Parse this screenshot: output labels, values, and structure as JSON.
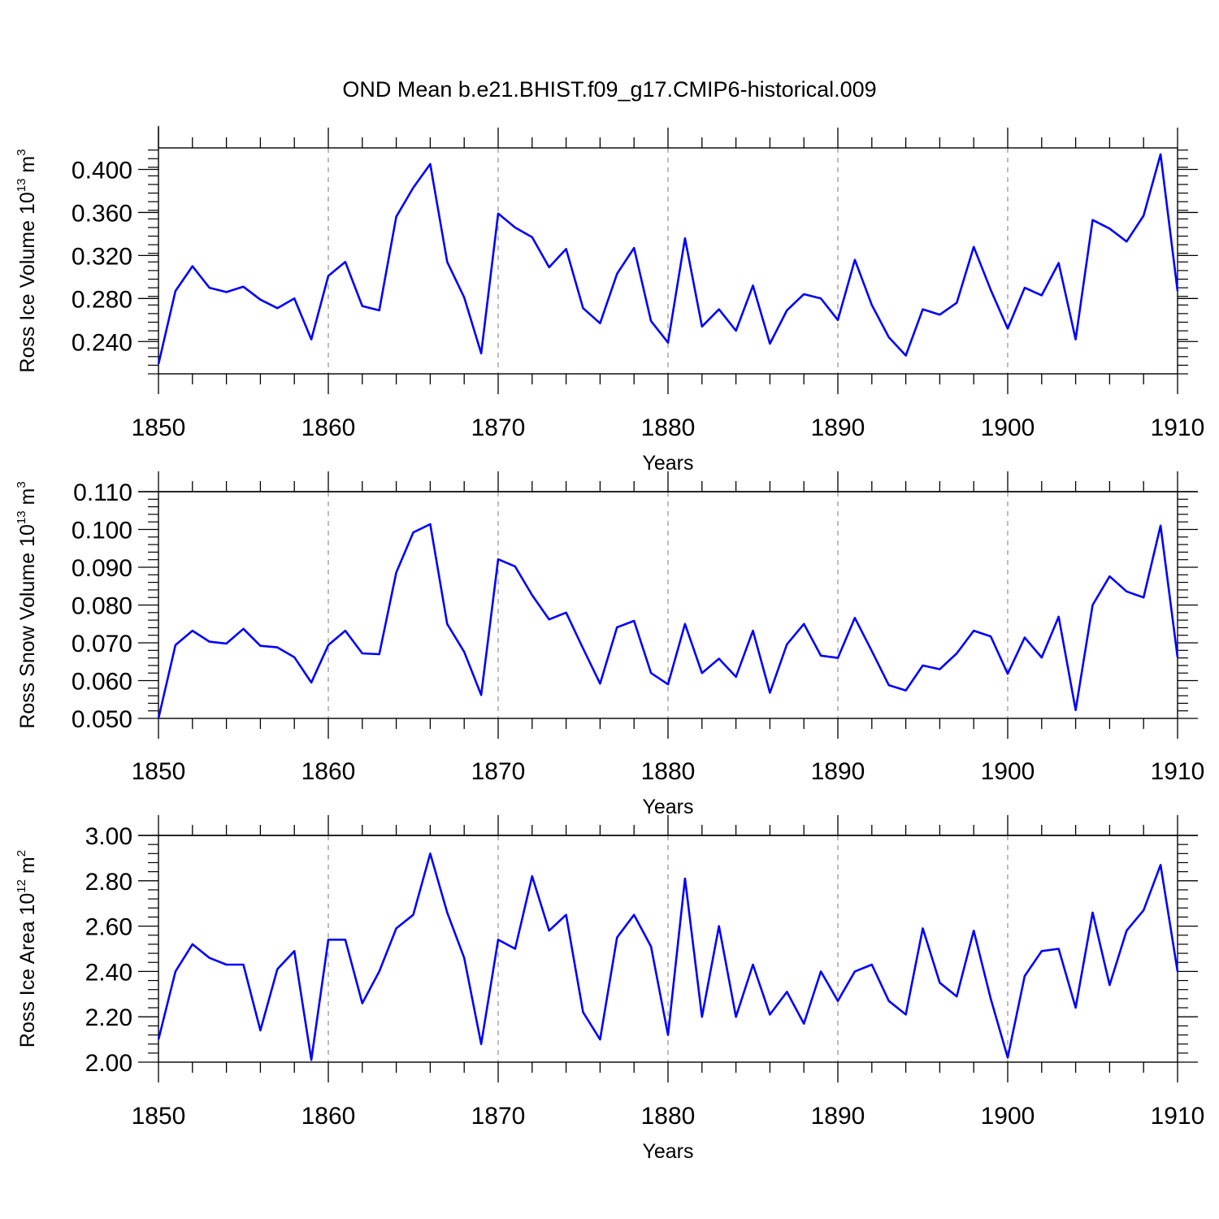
{
  "chart_data": {
    "type": "line",
    "title": "OND Mean b.e21.BHIST.f09_g17.CMIP6-historical.009",
    "color": "#0000ff",
    "x": [
      1850,
      1851,
      1852,
      1853,
      1854,
      1855,
      1856,
      1857,
      1858,
      1859,
      1860,
      1861,
      1862,
      1863,
      1864,
      1865,
      1866,
      1867,
      1868,
      1869,
      1870,
      1871,
      1872,
      1873,
      1874,
      1875,
      1876,
      1877,
      1878,
      1879,
      1880,
      1881,
      1882,
      1883,
      1884,
      1885,
      1886,
      1887,
      1888,
      1889,
      1890,
      1891,
      1892,
      1893,
      1894,
      1895,
      1896,
      1897,
      1898,
      1899,
      1900,
      1901,
      1902,
      1903,
      1904,
      1905,
      1906,
      1907,
      1908,
      1909,
      1910
    ],
    "xlim": [
      1850,
      1910
    ],
    "xticks": [
      "1850",
      "1860",
      "1870",
      "1880",
      "1890",
      "1900",
      "1910"
    ],
    "xlabel": "Years",
    "panels": [
      {
        "ylabel_prefix": "Ross Ice Volume 10",
        "ylabel_exp": "13",
        "ylabel_unit": "m",
        "ylabel_unit_exp": "3",
        "ylim": [
          0.21,
          0.42
        ],
        "yticks": [
          "0.240",
          "0.280",
          "0.320",
          "0.360",
          "0.400"
        ],
        "ytick_values": [
          0.24,
          0.28,
          0.32,
          0.36,
          0.4
        ],
        "values": [
          0.219,
          0.287,
          0.31,
          0.29,
          0.286,
          0.291,
          0.279,
          0.271,
          0.28,
          0.242,
          0.301,
          0.314,
          0.273,
          0.269,
          0.356,
          0.383,
          0.405,
          0.314,
          0.281,
          0.229,
          0.359,
          0.346,
          0.337,
          0.309,
          0.326,
          0.271,
          0.257,
          0.303,
          0.327,
          0.259,
          0.239,
          0.336,
          0.254,
          0.27,
          0.25,
          0.292,
          0.238,
          0.269,
          0.284,
          0.28,
          0.26,
          0.316,
          0.274,
          0.244,
          0.227,
          0.27,
          0.265,
          0.276,
          0.328,
          0.288,
          0.252,
          0.29,
          0.283,
          0.313,
          0.242,
          0.353,
          0.345,
          0.333,
          0.357,
          0.414,
          0.287
        ]
      },
      {
        "ylabel_prefix": "Ross Snow Volume 10",
        "ylabel_exp": "13",
        "ylabel_unit": "m",
        "ylabel_unit_exp": "3",
        "ylim": [
          0.05,
          0.11
        ],
        "yticks": [
          "0.050",
          "0.060",
          "0.070",
          "0.080",
          "0.090",
          "0.100",
          "0.110"
        ],
        "ytick_values": [
          0.05,
          0.06,
          0.07,
          0.08,
          0.09,
          0.1,
          0.11
        ],
        "values": [
          0.05,
          0.0694,
          0.0732,
          0.0703,
          0.0698,
          0.0737,
          0.0692,
          0.0688,
          0.0662,
          0.0595,
          0.0694,
          0.0732,
          0.0672,
          0.067,
          0.0886,
          0.0992,
          0.1014,
          0.075,
          0.0676,
          0.0562,
          0.0921,
          0.0902,
          0.0826,
          0.0762,
          0.078,
          0.0685,
          0.0592,
          0.0741,
          0.0758,
          0.062,
          0.059,
          0.075,
          0.062,
          0.0658,
          0.061,
          0.0732,
          0.0568,
          0.0696,
          0.075,
          0.0666,
          0.066,
          0.0766,
          0.0678,
          0.0588,
          0.0574,
          0.064,
          0.063,
          0.0672,
          0.0732,
          0.0717,
          0.0618,
          0.0714,
          0.0661,
          0.0769,
          0.0522,
          0.08,
          0.0876,
          0.0836,
          0.082,
          0.101,
          0.0662
        ]
      },
      {
        "ylabel_prefix": "Ross Ice Area 10",
        "ylabel_exp": "12",
        "ylabel_unit": "m",
        "ylabel_unit_exp": "2",
        "ylim": [
          2.0,
          3.0
        ],
        "yticks": [
          "2.00",
          "2.20",
          "2.40",
          "2.60",
          "2.80",
          "3.00"
        ],
        "ytick_values": [
          2.0,
          2.2,
          2.4,
          2.6,
          2.8,
          3.0
        ],
        "values": [
          2.1,
          2.4,
          2.52,
          2.46,
          2.43,
          2.43,
          2.14,
          2.41,
          2.49,
          2.01,
          2.54,
          2.54,
          2.26,
          2.4,
          2.59,
          2.65,
          2.92,
          2.66,
          2.46,
          2.08,
          2.54,
          2.5,
          2.82,
          2.58,
          2.65,
          2.22,
          2.1,
          2.55,
          2.65,
          2.51,
          2.12,
          2.81,
          2.2,
          2.6,
          2.2,
          2.43,
          2.21,
          2.31,
          2.17,
          2.4,
          2.27,
          2.4,
          2.43,
          2.27,
          2.21,
          2.59,
          2.35,
          2.29,
          2.58,
          2.28,
          2.02,
          2.38,
          2.49,
          2.5,
          2.24,
          2.66,
          2.34,
          2.58,
          2.67,
          2.87,
          2.4
        ]
      }
    ]
  }
}
